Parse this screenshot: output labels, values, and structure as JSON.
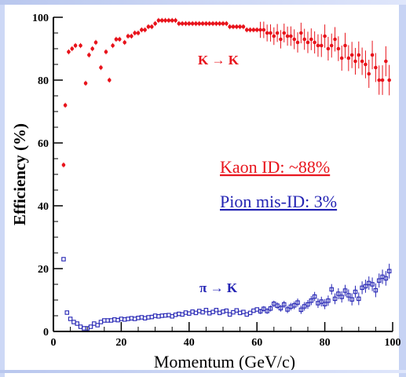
{
  "colors": {
    "kaon": "#e8141c",
    "pion": "#2424b4",
    "axis": "#000000",
    "frame": "#c7d3f4"
  },
  "chart_data": {
    "type": "scatter",
    "xlabel": "Momentum  (GeV/c)",
    "ylabel": "Efficiency  (%)",
    "xlim": [
      0,
      100
    ],
    "ylim": [
      0,
      100
    ],
    "xticks": [
      "0",
      "20",
      "40",
      "60",
      "80",
      "100"
    ],
    "yticks": [
      "0",
      "20",
      "40",
      "60",
      "80",
      "100"
    ],
    "grid": false,
    "legend": "none",
    "annotations": {
      "kaon_curve_label": "K → K",
      "pion_curve_label": "π → K",
      "kaon_id": "Kaon ID: ~88%",
      "pion_misid": "Pion mis-ID: 3%"
    },
    "series": [
      {
        "marker": "filled-circle",
        "color": "#e8141c",
        "x": [
          3,
          3.5,
          4.5,
          5.5,
          6.5,
          8,
          9.5,
          10.5,
          11.5,
          12.5,
          14,
          15.5,
          16.5,
          17.5,
          18.5,
          19.5,
          21,
          22,
          23,
          24,
          25,
          26,
          27,
          28,
          29,
          30,
          31,
          32,
          33,
          34,
          35,
          36,
          37,
          38,
          39,
          40,
          41,
          42,
          43,
          44,
          45,
          46,
          47,
          48,
          49,
          50,
          51,
          52,
          53,
          54,
          55,
          56,
          57,
          58,
          59,
          60,
          61,
          62,
          63,
          64,
          65,
          66,
          67,
          68,
          69,
          70,
          71,
          72,
          73,
          74,
          75,
          76,
          77,
          78,
          79,
          80,
          81,
          82,
          83,
          84,
          85,
          86,
          87,
          88,
          89,
          90,
          91,
          92,
          93,
          94,
          95,
          96,
          97,
          98,
          99
        ],
        "y": [
          53,
          72,
          89,
          90,
          91,
          91,
          79,
          88,
          90,
          92,
          84,
          89,
          80,
          91,
          93,
          93,
          92,
          94,
          94,
          95,
          95,
          96,
          96,
          97,
          97,
          98,
          99,
          99,
          99,
          99,
          99,
          99,
          98,
          98,
          98,
          98,
          98,
          98,
          98,
          98,
          98,
          98,
          98,
          98,
          98,
          98,
          98,
          97,
          97,
          97,
          97,
          97,
          96,
          96,
          96,
          96,
          96,
          96,
          95,
          95,
          94,
          95,
          93,
          95,
          94,
          94,
          93,
          92,
          95,
          93,
          92,
          93,
          92,
          91,
          91,
          94,
          90,
          91,
          93,
          90,
          87,
          91,
          87,
          88,
          86,
          88,
          86,
          85,
          82,
          88,
          84,
          80,
          80,
          86,
          80
        ]
      },
      {
        "marker": "open-square",
        "color": "#2424b4",
        "x": [
          3,
          4,
          5,
          6,
          7,
          8,
          9,
          10,
          11,
          12,
          13,
          14,
          15,
          16,
          17,
          18,
          19,
          20,
          21,
          22,
          23,
          24,
          25,
          26,
          27,
          28,
          29,
          30,
          31,
          32,
          33,
          34,
          35,
          36,
          37,
          38,
          39,
          40,
          41,
          42,
          43,
          44,
          45,
          46,
          47,
          48,
          49,
          50,
          51,
          52,
          53,
          54,
          55,
          56,
          57,
          58,
          59,
          60,
          61,
          62,
          63,
          64,
          65,
          66,
          67,
          68,
          69,
          70,
          71,
          72,
          73,
          74,
          75,
          76,
          77,
          78,
          79,
          80,
          81,
          82,
          83,
          84,
          85,
          86,
          87,
          88,
          89,
          90,
          91,
          92,
          93,
          94,
          95,
          96,
          97,
          98,
          99
        ],
        "y": [
          23,
          6,
          4,
          3,
          2.5,
          1.5,
          1,
          1,
          1.5,
          2.5,
          2,
          3,
          3.5,
          3.5,
          3.5,
          3.8,
          3.6,
          4,
          3.8,
          4,
          4.2,
          4,
          4.3,
          4.5,
          4.2,
          4.5,
          4.6,
          5,
          4.8,
          5,
          5.1,
          5.2,
          4.8,
          5.3,
          5.6,
          5.4,
          6,
          5.7,
          6.3,
          5.9,
          6.5,
          6.1,
          6.8,
          5.8,
          6.2,
          6.8,
          5.9,
          6.3,
          6.6,
          5.4,
          6.1,
          6.7,
          5.9,
          6.2,
          5.4,
          5.9,
          6.6,
          7,
          6.4,
          7.2,
          6.5,
          7.3,
          8.8,
          8.2,
          7.4,
          8.6,
          7,
          7.9,
          8.3,
          9.2,
          6.9,
          8,
          8.6,
          9.8,
          11.1,
          9,
          9.5,
          8.7,
          9.8,
          13.4,
          10.4,
          12,
          11,
          13,
          11.5,
          10.2,
          12.6,
          10.4,
          13.9,
          14.4,
          15.4,
          15,
          13.1,
          16.2,
          17.4,
          16.9,
          19.2
        ]
      }
    ]
  }
}
